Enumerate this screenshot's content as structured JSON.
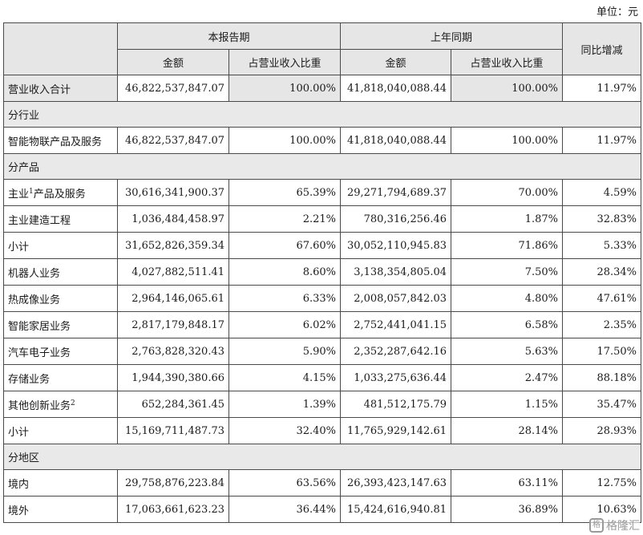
{
  "unit_label": "单位：元",
  "header": {
    "current_period": "本报告期",
    "prior_period": "上年同期",
    "yoy": "同比增减",
    "amount": "金额",
    "share": "占营业收入比重"
  },
  "total": {
    "label": "营业收入合计",
    "cur_amount": "46,822,537,847.07",
    "cur_share": "100.00%",
    "prev_amount": "41,818,040,088.44",
    "prev_share": "100.00%",
    "yoy": "11.97%"
  },
  "sections": {
    "by_industry": "分行业",
    "by_product": "分产品",
    "by_region": "分地区"
  },
  "industry_row": {
    "label": "智能物联产品及服务",
    "cur_amount": "46,822,537,847.07",
    "cur_share": "100.00%",
    "prev_amount": "41,818,040,088.44",
    "prev_share": "100.00%",
    "yoy": "11.97%"
  },
  "product_rows": [
    {
      "label": "主业",
      "sup": "1",
      "label_suffix": "产品及服务",
      "cur_amount": "30,616,341,900.37",
      "cur_share": "65.39%",
      "prev_amount": "29,271,794,689.37",
      "prev_share": "70.00%",
      "yoy": "4.59%"
    },
    {
      "label": "主业建造工程",
      "sup": "",
      "label_suffix": "",
      "cur_amount": "1,036,484,458.97",
      "cur_share": "2.21%",
      "prev_amount": "780,316,256.46",
      "prev_share": "1.87%",
      "yoy": "32.83%"
    },
    {
      "label": "小计",
      "sup": "",
      "label_suffix": "",
      "cur_amount": "31,652,826,359.34",
      "cur_share": "67.60%",
      "prev_amount": "30,052,110,945.83",
      "prev_share": "71.86%",
      "yoy": "5.33%"
    },
    {
      "label": "机器人业务",
      "sup": "",
      "label_suffix": "",
      "cur_amount": "4,027,882,511.41",
      "cur_share": "8.60%",
      "prev_amount": "3,138,354,805.04",
      "prev_share": "7.50%",
      "yoy": "28.34%"
    },
    {
      "label": "热成像业务",
      "sup": "",
      "label_suffix": "",
      "cur_amount": "2,964,146,065.61",
      "cur_share": "6.33%",
      "prev_amount": "2,008,057,842.03",
      "prev_share": "4.80%",
      "yoy": "47.61%"
    },
    {
      "label": "智能家居业务",
      "sup": "",
      "label_suffix": "",
      "cur_amount": "2,817,179,848.17",
      "cur_share": "6.02%",
      "prev_amount": "2,752,441,041.15",
      "prev_share": "6.58%",
      "yoy": "2.35%"
    },
    {
      "label": "汽车电子业务",
      "sup": "",
      "label_suffix": "",
      "cur_amount": "2,763,828,320.43",
      "cur_share": "5.90%",
      "prev_amount": "2,352,287,642.16",
      "prev_share": "5.63%",
      "yoy": "17.50%"
    },
    {
      "label": "存储业务",
      "sup": "",
      "label_suffix": "",
      "cur_amount": "1,944,390,380.66",
      "cur_share": "4.15%",
      "prev_amount": "1,033,275,636.44",
      "prev_share": "2.47%",
      "yoy": "88.18%"
    },
    {
      "label": "其他创新业务",
      "sup": "2",
      "label_suffix": "",
      "cur_amount": "652,284,361.45",
      "cur_share": "1.39%",
      "prev_amount": "481,512,175.79",
      "prev_share": "1.15%",
      "yoy": "35.47%"
    },
    {
      "label": "小计",
      "sup": "",
      "label_suffix": "",
      "cur_amount": "15,169,711,487.73",
      "cur_share": "32.40%",
      "prev_amount": "11,765,929,142.61",
      "prev_share": "28.14%",
      "yoy": "28.93%"
    }
  ],
  "region_rows": [
    {
      "label": "境内",
      "cur_amount": "29,758,876,223.84",
      "cur_share": "63.56%",
      "prev_amount": "26,393,423,147.63",
      "prev_share": "63.11%",
      "yoy": "12.75%"
    },
    {
      "label": "境外",
      "cur_amount": "17,063,661,623.23",
      "cur_share": "36.44%",
      "prev_amount": "15,424,616,940.81",
      "prev_share": "36.89%",
      "yoy": "10.63%"
    }
  ],
  "watermark": {
    "logo": "格",
    "text": "格隆汇"
  }
}
